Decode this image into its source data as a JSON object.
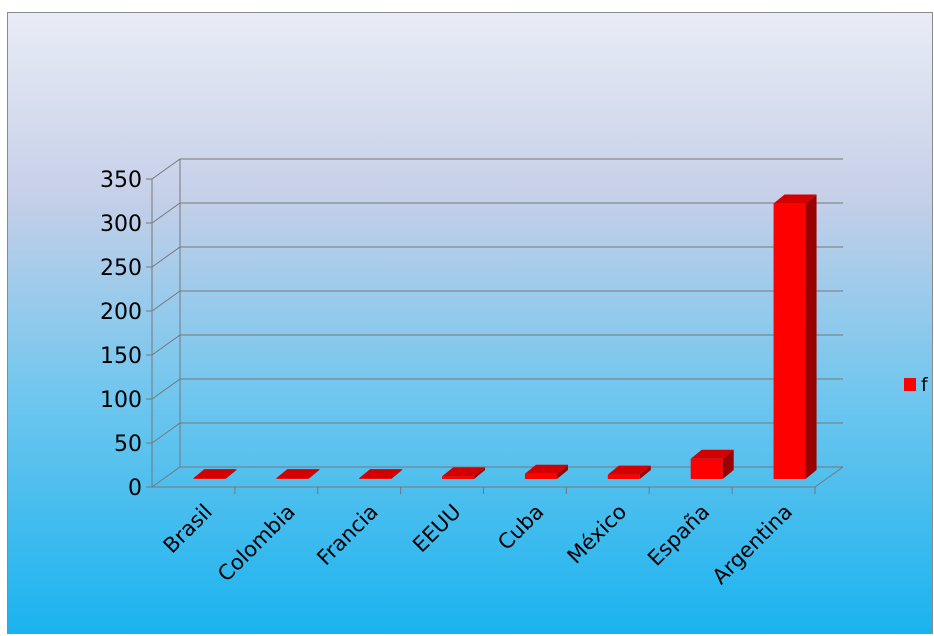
{
  "chart_data": {
    "type": "bar",
    "style": "3d-column",
    "categories": [
      "Brasil",
      "Colombia",
      "Francia",
      "EEUU",
      "Cuba",
      "México",
      "España",
      "Argentina"
    ],
    "series": [
      {
        "name": "f",
        "values": [
          1,
          1,
          1,
          3,
          6,
          5,
          23,
          313
        ]
      }
    ],
    "yticks": [
      0,
      50,
      100,
      150,
      200,
      250,
      300,
      350
    ],
    "ylim": [
      0,
      350
    ],
    "grid": true,
    "legend": "right",
    "colors": {
      "bar_front": "#ff0000",
      "bar_side": "#9b0000",
      "bar_top": "#d40000",
      "grid": "#777777"
    }
  }
}
